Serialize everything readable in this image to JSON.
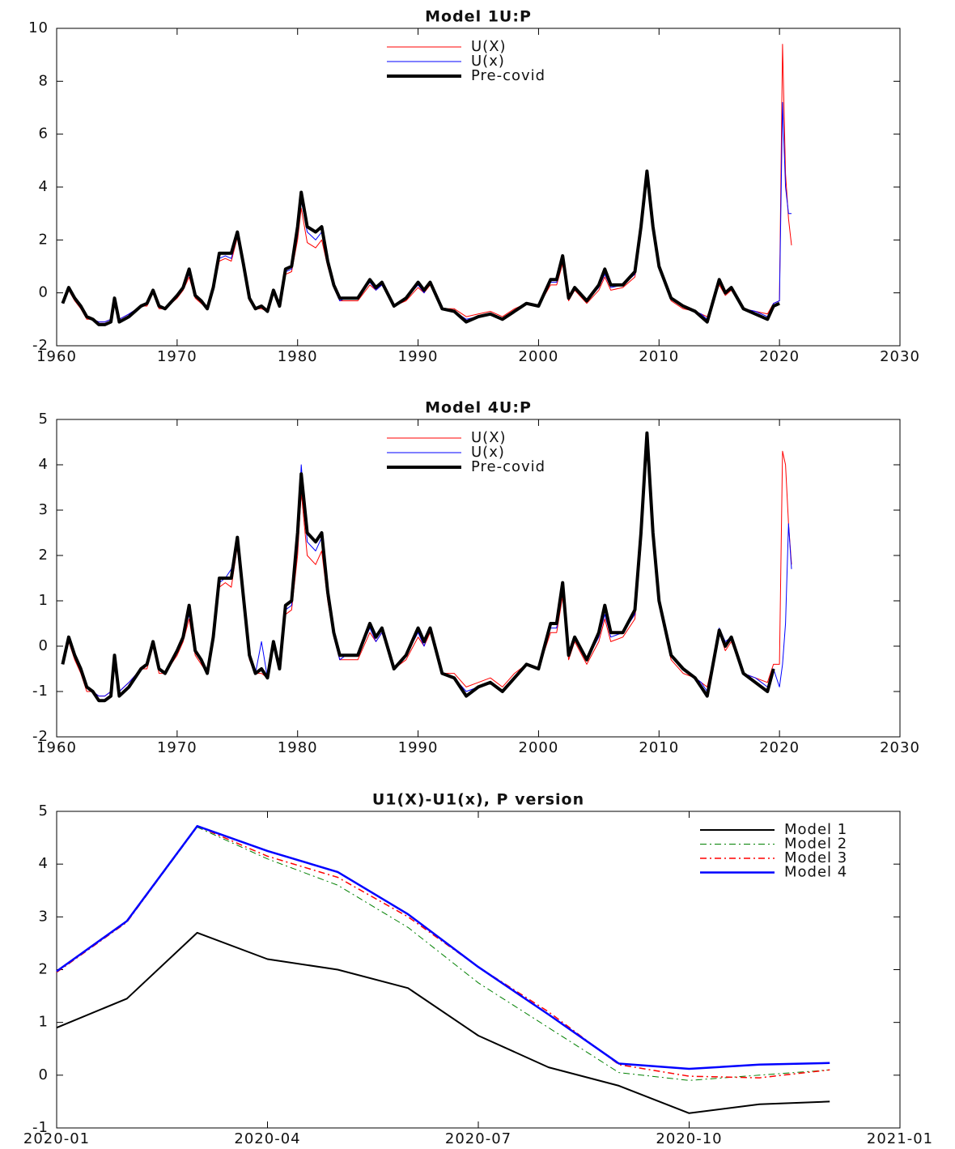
{
  "chart_data": [
    {
      "type": "line",
      "title": "Model 1U:P",
      "legend": "upper center",
      "x": [
        1960.5,
        1961,
        1961.5,
        1962,
        1962.5,
        1963,
        1963.5,
        1964,
        1964.5,
        1964.8,
        1965.2,
        1966,
        1967,
        1967.5,
        1968,
        1968.5,
        1969,
        1970,
        1970.5,
        1971,
        1971.5,
        1972,
        1972.5,
        1973,
        1973.5,
        1974,
        1974.5,
        1975,
        1975.5,
        1976,
        1976.5,
        1977,
        1977.5,
        1978,
        1978.5,
        1979,
        1979.5,
        1980,
        1980.3,
        1980.8,
        1981.5,
        1982,
        1982.5,
        1983,
        1983.5,
        1984,
        1985,
        1986,
        1986.5,
        1987,
        1988,
        1989,
        1990,
        1990.5,
        1991,
        1992,
        1993,
        1994,
        1995,
        1996,
        1997,
        1998,
        1999,
        2000,
        2001,
        2001.5,
        2002,
        2002.5,
        2003,
        2004,
        2005,
        2005.5,
        2006,
        2007,
        2008,
        2008.5,
        2009,
        2009.5,
        2010,
        2011,
        2012,
        2013,
        2013.5,
        2014,
        2015,
        2015.5,
        2016,
        2017,
        2018,
        2019,
        2019.5,
        2020,
        2020.25,
        2020.5,
        2020.75,
        2021
      ],
      "series": [
        {
          "name": "U(X)",
          "color": "#ff0000",
          "linewidth": 1,
          "values": [
            -0.4,
            0.1,
            -0.3,
            -0.6,
            -1.0,
            -1.0,
            -1.1,
            -1.1,
            -1.0,
            -0.3,
            -1.0,
            -0.8,
            -0.5,
            -0.5,
            0.0,
            -0.6,
            -0.6,
            -0.2,
            0.1,
            0.6,
            -0.2,
            -0.4,
            -0.6,
            0.1,
            1.2,
            1.3,
            1.2,
            2.1,
            1.0,
            -0.3,
            -0.6,
            -0.6,
            -0.7,
            0.0,
            -0.5,
            0.7,
            0.8,
            2.0,
            3.2,
            1.9,
            1.7,
            2.0,
            1.0,
            0.2,
            -0.3,
            -0.3,
            -0.3,
            0.3,
            0.1,
            0.3,
            -0.5,
            -0.3,
            0.2,
            0.0,
            0.3,
            -0.6,
            -0.6,
            -0.9,
            -0.8,
            -0.7,
            -0.9,
            -0.6,
            -0.4,
            -0.5,
            0.3,
            0.3,
            1.1,
            -0.3,
            0.1,
            -0.4,
            0.1,
            0.6,
            0.1,
            0.2,
            0.6,
            2.2,
            4.3,
            2.3,
            0.9,
            -0.3,
            -0.6,
            -0.7,
            -0.8,
            -0.9,
            0.3,
            -0.1,
            0.1,
            -0.6,
            -0.7,
            -0.8,
            -0.4,
            -0.3,
            9.4,
            4.5,
            2.8,
            1.8
          ]
        },
        {
          "name": "U(x)",
          "color": "#0000ff",
          "linewidth": 1,
          "values": [
            -0.4,
            0.2,
            -0.2,
            -0.5,
            -0.9,
            -1.0,
            -1.1,
            -1.1,
            -1.0,
            -0.2,
            -1.0,
            -0.8,
            -0.5,
            -0.4,
            0.1,
            -0.5,
            -0.6,
            -0.1,
            0.2,
            0.7,
            -0.1,
            -0.3,
            -0.6,
            0.2,
            1.3,
            1.4,
            1.3,
            2.2,
            1.0,
            -0.2,
            -0.6,
            -0.5,
            -0.7,
            0.1,
            -0.5,
            0.8,
            0.9,
            2.2,
            3.5,
            2.3,
            2.0,
            2.3,
            1.1,
            0.2,
            -0.3,
            -0.2,
            -0.2,
            0.4,
            0.1,
            0.3,
            -0.5,
            -0.2,
            0.3,
            0.0,
            0.4,
            -0.6,
            -0.7,
            -1.0,
            -0.9,
            -0.8,
            -1.0,
            -0.7,
            -0.4,
            -0.5,
            0.4,
            0.4,
            1.3,
            -0.2,
            0.2,
            -0.3,
            0.2,
            0.7,
            0.2,
            0.3,
            0.7,
            2.4,
            4.5,
            2.4,
            1.0,
            -0.2,
            -0.5,
            -0.7,
            -0.8,
            -1.0,
            0.4,
            0.0,
            0.2,
            -0.6,
            -0.7,
            -0.9,
            -0.4,
            -0.3,
            7.2,
            4.0,
            3.0,
            3.0
          ]
        },
        {
          "name": "Pre-covid",
          "color": "#000000",
          "linewidth": 4,
          "values": [
            -0.4,
            0.2,
            -0.2,
            -0.5,
            -0.9,
            -1.0,
            -1.2,
            -1.2,
            -1.1,
            -0.2,
            -1.1,
            -0.9,
            -0.5,
            -0.4,
            0.1,
            -0.5,
            -0.6,
            -0.1,
            0.2,
            0.9,
            -0.1,
            -0.3,
            -0.6,
            0.2,
            1.5,
            1.5,
            1.5,
            2.3,
            1.1,
            -0.2,
            -0.6,
            -0.5,
            -0.7,
            0.1,
            -0.5,
            0.9,
            1.0,
            2.5,
            3.8,
            2.5,
            2.3,
            2.5,
            1.2,
            0.3,
            -0.2,
            -0.2,
            -0.2,
            0.5,
            0.2,
            0.4,
            -0.5,
            -0.2,
            0.4,
            0.1,
            0.4,
            -0.6,
            -0.7,
            -1.1,
            -0.9,
            -0.8,
            -1.0,
            -0.7,
            -0.4,
            -0.5,
            0.5,
            0.5,
            1.4,
            -0.2,
            0.2,
            -0.3,
            0.3,
            0.9,
            0.3,
            0.3,
            0.8,
            2.5,
            4.6,
            2.5,
            1.0,
            -0.2,
            -0.5,
            -0.7,
            -0.9,
            -1.1,
            0.5,
            0.0,
            0.2,
            -0.6,
            -0.8,
            -1.0,
            -0.5,
            -0.4,
            null,
            null,
            null,
            null
          ]
        }
      ],
      "xlim": [
        1960,
        2030
      ],
      "xticks": [
        1960,
        1970,
        1980,
        1990,
        2000,
        2010,
        2020,
        2030
      ],
      "ylim": [
        -2,
        10
      ],
      "yticks": [
        -2,
        0,
        2,
        4,
        6,
        8,
        10
      ]
    },
    {
      "type": "line",
      "title": "Model 4U:P",
      "legend": "upper center",
      "x": [
        1960.5,
        1961,
        1961.5,
        1962,
        1962.5,
        1963,
        1963.5,
        1964,
        1964.5,
        1964.8,
        1965.2,
        1966,
        1967,
        1967.5,
        1968,
        1968.5,
        1969,
        1970,
        1970.5,
        1971,
        1971.5,
        1972,
        1972.5,
        1973,
        1973.5,
        1974,
        1974.5,
        1975,
        1975.5,
        1976,
        1976.5,
        1977,
        1977.5,
        1978,
        1978.5,
        1979,
        1979.5,
        1980,
        1980.3,
        1980.8,
        1981.5,
        1982,
        1982.5,
        1983,
        1983.5,
        1984,
        1985,
        1986,
        1986.5,
        1987,
        1988,
        1989,
        1990,
        1990.5,
        1991,
        1992,
        1993,
        1994,
        1995,
        1996,
        1997,
        1998,
        1999,
        2000,
        2001,
        2001.5,
        2002,
        2002.5,
        2003,
        2004,
        2005,
        2005.5,
        2006,
        2007,
        2008,
        2008.5,
        2009,
        2009.5,
        2010,
        2011,
        2012,
        2013,
        2013.5,
        2014,
        2015,
        2015.5,
        2016,
        2017,
        2018,
        2019,
        2019.5,
        2020,
        2020.25,
        2020.5,
        2020.75,
        2021
      ],
      "series": [
        {
          "name": "U(X)",
          "color": "#ff0000",
          "linewidth": 1,
          "values": [
            -0.4,
            0.1,
            -0.3,
            -0.6,
            -1.0,
            -1.0,
            -1.1,
            -1.1,
            -1.0,
            -0.3,
            -1.0,
            -0.8,
            -0.5,
            -0.5,
            0.0,
            -0.6,
            -0.6,
            -0.2,
            0.1,
            0.6,
            -0.2,
            -0.4,
            -0.6,
            0.1,
            1.3,
            1.4,
            1.3,
            2.2,
            1.0,
            -0.3,
            -0.6,
            -0.6,
            -0.7,
            0.0,
            -0.5,
            0.7,
            0.8,
            2.0,
            3.4,
            2.0,
            1.8,
            2.1,
            1.0,
            0.2,
            -0.3,
            -0.3,
            -0.3,
            0.3,
            0.1,
            0.3,
            -0.5,
            -0.3,
            0.2,
            0.0,
            0.3,
            -0.6,
            -0.6,
            -0.9,
            -0.8,
            -0.7,
            -0.9,
            -0.6,
            -0.4,
            -0.5,
            0.3,
            0.3,
            1.1,
            -0.3,
            0.1,
            -0.4,
            0.1,
            0.6,
            0.1,
            0.2,
            0.6,
            2.2,
            4.4,
            2.3,
            0.9,
            -0.3,
            -0.6,
            -0.7,
            -0.8,
            -0.9,
            0.3,
            -0.1,
            0.1,
            -0.6,
            -0.7,
            -0.8,
            -0.4,
            -0.4,
            4.3,
            4.0,
            2.7,
            1.8
          ]
        },
        {
          "name": "U(x)",
          "color": "#0000ff",
          "linewidth": 1,
          "values": [
            -0.4,
            0.2,
            -0.2,
            -0.5,
            -0.9,
            -1.0,
            -1.1,
            -1.1,
            -1.0,
            -0.2,
            -1.0,
            -0.8,
            -0.5,
            -0.4,
            0.1,
            -0.5,
            -0.6,
            -0.1,
            0.2,
            0.7,
            -0.1,
            -0.3,
            -0.6,
            0.2,
            1.4,
            1.5,
            1.7,
            2.3,
            1.0,
            -0.2,
            -0.6,
            0.1,
            -0.7,
            0.1,
            -0.5,
            0.8,
            0.9,
            2.2,
            4.0,
            2.3,
            2.1,
            2.4,
            1.1,
            0.2,
            -0.3,
            -0.2,
            -0.2,
            0.4,
            0.1,
            0.3,
            -0.5,
            -0.2,
            0.3,
            0.0,
            0.4,
            -0.6,
            -0.7,
            -1.0,
            -0.9,
            -0.8,
            -1.0,
            -0.7,
            -0.4,
            -0.5,
            0.4,
            0.4,
            1.3,
            -0.2,
            0.2,
            -0.3,
            0.2,
            0.7,
            0.2,
            0.3,
            0.7,
            2.4,
            4.6,
            2.4,
            1.0,
            -0.2,
            -0.5,
            -0.7,
            -0.8,
            -1.0,
            0.4,
            0.1,
            0.2,
            -0.6,
            -0.7,
            -0.9,
            -0.5,
            -0.9,
            -0.4,
            0.5,
            2.7,
            1.7
          ]
        },
        {
          "name": "Pre-covid",
          "color": "#000000",
          "linewidth": 4,
          "values": [
            -0.4,
            0.2,
            -0.2,
            -0.5,
            -0.9,
            -1.0,
            -1.2,
            -1.2,
            -1.1,
            -0.2,
            -1.1,
            -0.9,
            -0.5,
            -0.4,
            0.1,
            -0.5,
            -0.6,
            -0.1,
            0.2,
            0.9,
            -0.1,
            -0.3,
            -0.6,
            0.2,
            1.5,
            1.5,
            1.5,
            2.4,
            1.1,
            -0.2,
            -0.6,
            -0.5,
            -0.7,
            0.1,
            -0.5,
            0.9,
            1.0,
            2.5,
            3.8,
            2.5,
            2.3,
            2.5,
            1.2,
            0.3,
            -0.2,
            -0.2,
            -0.2,
            0.5,
            0.2,
            0.4,
            -0.5,
            -0.2,
            0.4,
            0.1,
            0.4,
            -0.6,
            -0.7,
            -1.1,
            -0.9,
            -0.8,
            -1.0,
            -0.7,
            -0.4,
            -0.5,
            0.5,
            0.5,
            1.4,
            -0.2,
            0.2,
            -0.3,
            0.3,
            0.9,
            0.3,
            0.3,
            0.8,
            2.5,
            4.7,
            2.5,
            1.0,
            -0.2,
            -0.5,
            -0.7,
            -0.9,
            -1.1,
            0.35,
            0.0,
            0.2,
            -0.6,
            -0.8,
            -1.0,
            -0.5,
            null,
            null,
            null,
            null,
            null
          ]
        }
      ],
      "xlim": [
        1960,
        2030
      ],
      "xticks": [
        1960,
        1970,
        1980,
        1990,
        2000,
        2010,
        2020,
        2030
      ],
      "ylim": [
        -2,
        5
      ],
      "yticks": [
        -2,
        -1,
        0,
        1,
        2,
        3,
        4,
        5
      ]
    },
    {
      "type": "line",
      "title": "U1(X)-U1(x), P version",
      "legend": "upper right",
      "x": [
        "2020-01",
        "2020-02",
        "2020-03",
        "2020-04",
        "2020-05",
        "2020-06",
        "2020-07",
        "2020-08",
        "2020-09",
        "2020-10",
        "2020-11",
        "2020-12"
      ],
      "series": [
        {
          "name": "Model 1",
          "color": "#000000",
          "linewidth": 2,
          "line_style": "solid",
          "values": [
            0.9,
            1.45,
            2.7,
            2.2,
            2.0,
            1.65,
            0.75,
            0.15,
            -0.2,
            -0.72,
            -0.55,
            -0.5
          ]
        },
        {
          "name": "Model 2",
          "color": "#008000",
          "linewidth": 1,
          "line_style": "dashdot",
          "values": [
            1.95,
            2.9,
            4.7,
            4.1,
            3.6,
            2.8,
            1.75,
            0.9,
            0.05,
            -0.1,
            0.0,
            0.1
          ]
        },
        {
          "name": "Model 3",
          "color": "#ff0000",
          "linewidth": 1.5,
          "line_style": "dashdot",
          "values": [
            1.95,
            2.9,
            4.72,
            4.15,
            3.75,
            3.0,
            2.05,
            1.2,
            0.2,
            -0.02,
            -0.05,
            0.1
          ]
        },
        {
          "name": "Model 4",
          "color": "#0000ff",
          "linewidth": 2.5,
          "line_style": "solid",
          "values": [
            1.97,
            2.92,
            4.72,
            4.25,
            3.85,
            3.05,
            2.05,
            1.15,
            0.22,
            0.12,
            0.2,
            0.23
          ]
        }
      ],
      "xlim": [
        "2020-01",
        "2021-01"
      ],
      "xticks": [
        "2020-01",
        "2020-04",
        "2020-07",
        "2020-10",
        "2021-01"
      ],
      "ylim": [
        -1,
        5
      ],
      "yticks": [
        -1,
        0,
        1,
        2,
        3,
        4,
        5
      ]
    }
  ]
}
